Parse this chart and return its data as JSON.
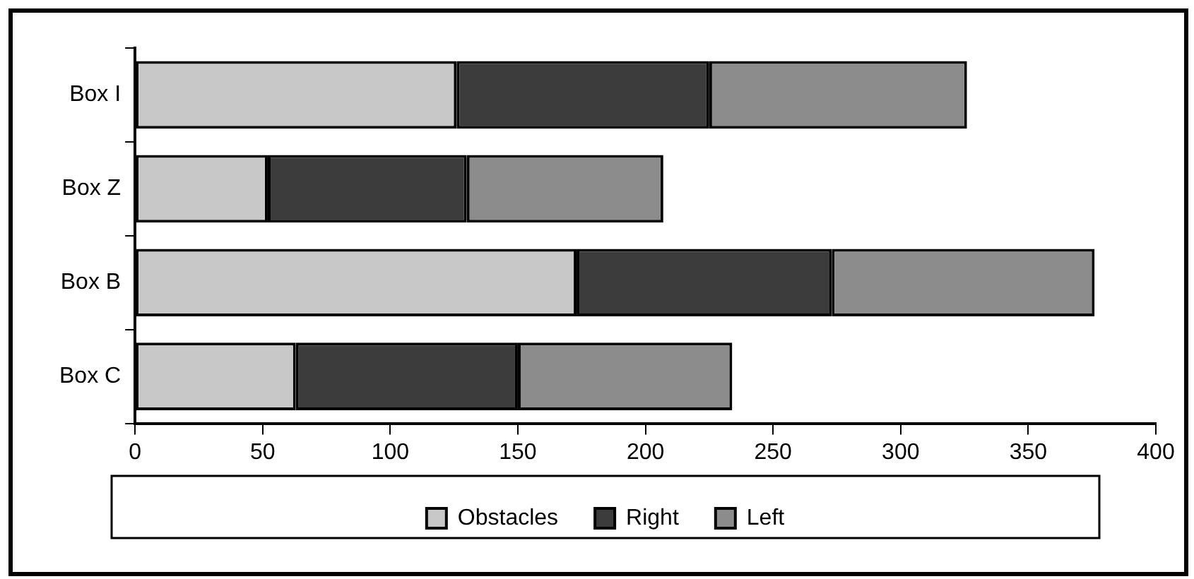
{
  "chart_data": {
    "type": "bar",
    "orientation": "horizontal",
    "stacked": true,
    "categories": [
      "Box I",
      "Box Z",
      "Box B",
      "Box C"
    ],
    "series": [
      {
        "name": "Obstacles",
        "color": "#c8c8c8",
        "values": [
          126,
          52,
          173,
          63
        ]
      },
      {
        "name": "Right",
        "color": "#3c3c3c",
        "values": [
          99,
          78,
          100,
          87
        ]
      },
      {
        "name": "Left",
        "color": "#8c8c8c",
        "values": [
          101,
          77,
          103,
          84
        ]
      }
    ],
    "xlim": [
      0,
      400
    ],
    "xticks": [
      0,
      50,
      100,
      150,
      200,
      250,
      300,
      350,
      400
    ],
    "grid": false,
    "legend": "bottom"
  }
}
